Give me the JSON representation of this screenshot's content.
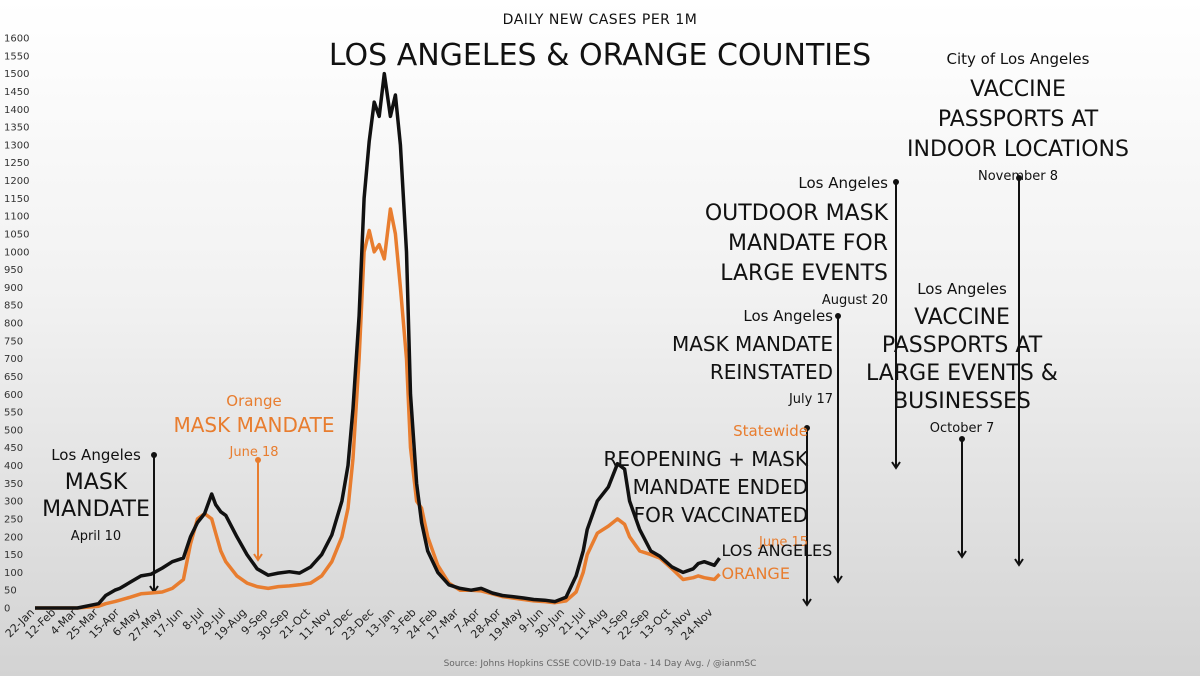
{
  "chart_data": {
    "type": "line",
    "subtitle": "DAILY NEW CASES PER 1M",
    "title": "LOS ANGELES & ORANGE COUNTIES",
    "source": "Source: Johns Hopkins CSSE COVID-19 Data - 14 Day Avg. / @ianmSC",
    "ylim": [
      0,
      1600
    ],
    "yticks": [
      0,
      50,
      100,
      150,
      200,
      250,
      300,
      350,
      400,
      450,
      500,
      550,
      600,
      650,
      700,
      750,
      800,
      850,
      900,
      950,
      1000,
      1050,
      1100,
      1150,
      1200,
      1250,
      1300,
      1350,
      1400,
      1450,
      1500,
      1550,
      1600
    ],
    "x_start": "22-Jan",
    "x_labels": [
      "22-Jan",
      "12-Feb",
      "4-Mar",
      "25-Mar",
      "15-Apr",
      "6-May",
      "27-May",
      "17-Jun",
      "8-Jul",
      "29-Jul",
      "19-Aug",
      "9-Sep",
      "30-Sep",
      "21-Oct",
      "11-Nov",
      "2-Dec",
      "23-Dec",
      "13-Jan",
      "3-Feb",
      "24-Feb",
      "17-Mar",
      "7-Apr",
      "28-Apr",
      "19-May",
      "9-Jun",
      "30-Jun",
      "21-Jul",
      "11-Aug",
      "1-Sep",
      "22-Sep",
      "13-Oct",
      "3-Nov",
      "24-Nov"
    ],
    "colors": {
      "la": "#111111",
      "orange": "#e87d2f"
    },
    "series": [
      {
        "name": "LOS ANGELES",
        "x": [
          "22-Jan",
          "12-Feb",
          "4-Mar",
          "25-Mar",
          "1-Apr",
          "10-Apr",
          "15-Apr",
          "25-Apr",
          "6-May",
          "16-May",
          "27-May",
          "6-Jun",
          "17-Jun",
          "24-Jun",
          "1-Jul",
          "8-Jul",
          "15-Jul",
          "19-Jul",
          "24-Jul",
          "29-Jul",
          "9-Aug",
          "19-Aug",
          "29-Aug",
          "9-Sep",
          "19-Sep",
          "30-Sep",
          "10-Oct",
          "21-Oct",
          "1-Nov",
          "11-Nov",
          "21-Nov",
          "27-Nov",
          "2-Dec",
          "8-Dec",
          "13-Dec",
          "18-Dec",
          "23-Dec",
          "28-Dec",
          "2-Jan",
          "8-Jan",
          "13-Jan",
          "18-Jan",
          "24-Jan",
          "28-Jan",
          "3-Feb",
          "8-Feb",
          "14-Feb",
          "24-Feb",
          "6-Mar",
          "17-Mar",
          "28-Mar",
          "7-Apr",
          "18-Apr",
          "28-Apr",
          "8-May",
          "19-May",
          "29-May",
          "9-Jun",
          "19-Jun",
          "30-Jun",
          "10-Jul",
          "17-Jul",
          "21-Jul",
          "31-Jul",
          "11-Aug",
          "20-Aug",
          "27-Aug",
          "1-Sep",
          "11-Sep",
          "22-Sep",
          "1-Oct",
          "7-Oct",
          "13-Oct",
          "24-Oct",
          "3-Nov",
          "8-Nov",
          "14-Nov",
          "24-Nov",
          "29-Nov"
        ],
        "values": [
          0,
          0,
          0,
          12,
          35,
          50,
          55,
          72,
          90,
          95,
          112,
          130,
          140,
          200,
          240,
          265,
          320,
          290,
          270,
          260,
          200,
          150,
          110,
          92,
          98,
          102,
          98,
          115,
          150,
          205,
          300,
          400,
          560,
          820,
          1150,
          1310,
          1420,
          1380,
          1500,
          1380,
          1440,
          1300,
          1000,
          600,
          350,
          240,
          160,
          100,
          65,
          55,
          50,
          55,
          42,
          35,
          32,
          28,
          24,
          22,
          18,
          30,
          90,
          160,
          220,
          300,
          340,
          405,
          390,
          300,
          220,
          160,
          145,
          130,
          115,
          100,
          110,
          125,
          130,
          120,
          140
        ]
      },
      {
        "name": "ORANGE",
        "x": [
          "22-Jan",
          "12-Feb",
          "4-Mar",
          "25-Mar",
          "1-Apr",
          "10-Apr",
          "15-Apr",
          "25-Apr",
          "6-May",
          "16-May",
          "27-May",
          "6-Jun",
          "17-Jun",
          "24-Jun",
          "1-Jul",
          "8-Jul",
          "15-Jul",
          "19-Jul",
          "24-Jul",
          "29-Jul",
          "9-Aug",
          "19-Aug",
          "29-Aug",
          "9-Sep",
          "19-Sep",
          "30-Sep",
          "10-Oct",
          "21-Oct",
          "1-Nov",
          "11-Nov",
          "21-Nov",
          "27-Nov",
          "2-Dec",
          "8-Dec",
          "13-Dec",
          "18-Dec",
          "23-Dec",
          "28-Dec",
          "2-Jan",
          "8-Jan",
          "13-Jan",
          "18-Jan",
          "24-Jan",
          "28-Jan",
          "3-Feb",
          "8-Feb",
          "14-Feb",
          "24-Feb",
          "6-Mar",
          "17-Mar",
          "28-Mar",
          "7-Apr",
          "18-Apr",
          "28-Apr",
          "8-May",
          "19-May",
          "29-May",
          "9-Jun",
          "19-Jun",
          "30-Jun",
          "10-Jul",
          "17-Jul",
          "21-Jul",
          "31-Jul",
          "11-Aug",
          "20-Aug",
          "27-Aug",
          "1-Sep",
          "11-Sep",
          "22-Sep",
          "1-Oct",
          "7-Oct",
          "13-Oct",
          "24-Oct",
          "3-Nov",
          "8-Nov",
          "14-Nov",
          "24-Nov",
          "29-Nov"
        ],
        "values": [
          0,
          0,
          0,
          5,
          12,
          18,
          22,
          30,
          40,
          42,
          45,
          55,
          80,
          180,
          250,
          265,
          250,
          210,
          160,
          130,
          90,
          70,
          60,
          55,
          60,
          62,
          65,
          70,
          90,
          130,
          200,
          280,
          420,
          700,
          1000,
          1060,
          1000,
          1020,
          980,
          1120,
          1050,
          900,
          700,
          450,
          300,
          280,
          200,
          120,
          70,
          50,
          50,
          48,
          40,
          32,
          28,
          24,
          20,
          18,
          15,
          20,
          45,
          100,
          150,
          210,
          230,
          250,
          235,
          200,
          160,
          150,
          140,
          125,
          110,
          80,
          85,
          90,
          85,
          80,
          95
        ]
      }
    ],
    "end_labels": [
      "LOS ANGELES",
      "ORANGE"
    ],
    "annotations": [
      {
        "kind": "la",
        "at": "10-Apr",
        "value": 430,
        "place": "Los Angeles",
        "text": [
          "MASK",
          "MANDATE"
        ],
        "date": "April 10"
      },
      {
        "kind": "or",
        "at": "18-Jun",
        "value": 420,
        "place": "Orange",
        "text": [
          "MASK MANDATE"
        ],
        "date": "June 18"
      },
      {
        "kind": "mix",
        "at": "15-Jun",
        "value": 510,
        "place": "Statewide",
        "text": [
          "REOPENING + MASK",
          "MANDATE ENDED",
          "FOR VACCINATED"
        ],
        "date": "June 15"
      },
      {
        "kind": "la",
        "at": "17-Jul",
        "value": 820,
        "place": "Los Angeles",
        "text": [
          "MASK MANDATE",
          "REINSTATED"
        ],
        "date": "July 17"
      },
      {
        "kind": "la",
        "at": "20-Aug",
        "value": 1200,
        "place": "Los Angeles",
        "text": [
          "OUTDOOR MASK",
          "MANDATE FOR",
          "LARGE EVENTS"
        ],
        "date": "August 20"
      },
      {
        "kind": "la",
        "at": "7-Oct",
        "value": 480,
        "place": "Los Angeles",
        "text": [
          "VACCINE",
          "PASSPORTS AT",
          "LARGE EVENTS &",
          "BUSINESSES"
        ],
        "date": "October 7"
      },
      {
        "kind": "la",
        "at": "8-Nov",
        "value": 1210,
        "place": "City of Los Angeles",
        "text": [
          "VACCINE",
          "PASSPORTS AT",
          "INDOOR LOCATIONS"
        ],
        "date": "November 8"
      }
    ]
  }
}
